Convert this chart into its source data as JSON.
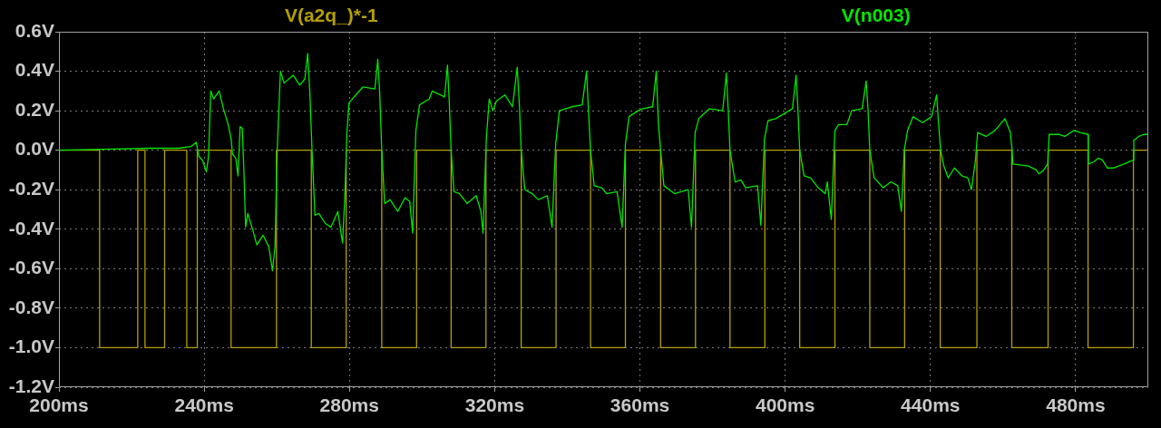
{
  "chart_data": {
    "type": "line",
    "legend": "top",
    "grid": true,
    "xlim": [
      200,
      500
    ],
    "ylim": [
      -1.2,
      0.6
    ],
    "xticks": [
      {
        "value": 200,
        "label": "200ms"
      },
      {
        "value": 240,
        "label": "240ms"
      },
      {
        "value": 280,
        "label": "280ms"
      },
      {
        "value": 320,
        "label": "320ms"
      },
      {
        "value": 360,
        "label": "360ms"
      },
      {
        "value": 400,
        "label": "400ms"
      },
      {
        "value": 440,
        "label": "440ms"
      },
      {
        "value": 480,
        "label": "480ms"
      }
    ],
    "yticks": [
      {
        "value": 0.6,
        "label": "0.6V"
      },
      {
        "value": 0.4,
        "label": "0.4V"
      },
      {
        "value": 0.2,
        "label": "0.2V"
      },
      {
        "value": 0,
        "label": "0.0V"
      },
      {
        "value": -0.2,
        "label": "-0.2V"
      },
      {
        "value": -0.4,
        "label": "-0.4V"
      },
      {
        "value": -0.6,
        "label": "-0.6V"
      },
      {
        "value": -0.8,
        "label": "-0.8V"
      },
      {
        "value": -1.0,
        "label": "-1.0V"
      },
      {
        "value": -1.2,
        "label": "-1.2V"
      }
    ],
    "series": [
      {
        "name": "V(a2q_)*-1",
        "color": "#b4a000",
        "x": [
          200,
          211.2,
          211.2,
          221.7,
          221.7,
          223.7,
          223.7,
          229.1,
          229.1,
          235.2,
          235.2,
          238.1,
          238.1,
          247.4,
          247.4,
          259.9,
          259.9,
          269.5,
          269.5,
          279.1,
          279.1,
          288.9,
          288.9,
          298.5,
          298.5,
          308.0,
          308.0,
          317.6,
          317.6,
          327.3,
          327.3,
          336.9,
          336.9,
          346.4,
          346.4,
          356.0,
          356.0,
          365.7,
          365.7,
          375.3,
          375.3,
          384.8,
          384.8,
          394.4,
          394.4,
          404.0,
          404.0,
          413.7,
          413.7,
          423.3,
          423.3,
          432.9,
          432.9,
          442.7,
          442.7,
          452.8,
          452.8,
          462.4,
          462.4,
          472.4,
          472.4,
          483.4,
          483.4,
          495.9,
          495.9,
          500
        ],
        "values": [
          0,
          0,
          -1,
          -1,
          0,
          0,
          -1,
          -1,
          0,
          0,
          -1,
          -1,
          0,
          0,
          -1,
          -1,
          0,
          0,
          -1,
          -1,
          0,
          0,
          -1,
          -1,
          0,
          0,
          -1,
          -1,
          0,
          0,
          -1,
          -1,
          0,
          0,
          -1,
          -1,
          0,
          0,
          -1,
          -1,
          0,
          0,
          -1,
          -1,
          0,
          0,
          -1,
          -1,
          0,
          0,
          -1,
          -1,
          0,
          0,
          -1,
          -1,
          0,
          0,
          -1,
          -1,
          0,
          0,
          -1,
          -1,
          0,
          0
        ]
      },
      {
        "name": "V(n003)",
        "color": "#00e600",
        "x": [
          200,
          212,
          225,
          233,
          236.5,
          237.8,
          238.5,
          239.5,
          240.6,
          241.2,
          241.8,
          242.6,
          244.1,
          245.3,
          246.6,
          247.4,
          247.8,
          248.7,
          249.3,
          249.9,
          250.5,
          251.0,
          251.4,
          252.0,
          253.3,
          254.5,
          256.2,
          257.8,
          258.8,
          259.5,
          260.1,
          261.0,
          262.0,
          264.5,
          266.3,
          267.7,
          268.5,
          269.1,
          269.7,
          270.5,
          271.6,
          273.3,
          274.9,
          276.8,
          278.1,
          278.7,
          279.3,
          279.9,
          280.8,
          283.7,
          287.0,
          287.8,
          288.3,
          288.9,
          289.7,
          291.2,
          293.3,
          295.3,
          296.6,
          297.4,
          298.3,
          299.3,
          302.0,
          302.8,
          306.2,
          307.0,
          307.5,
          308.0,
          308.8,
          310.3,
          312.4,
          314.9,
          316.2,
          316.8,
          317.7,
          318.5,
          319.5,
          320.5,
          322.8,
          324.9,
          326.2,
          326.8,
          327.3,
          328.3,
          330.3,
          332.0,
          334.5,
          335.8,
          336.8,
          337.8,
          341.2,
          344.1,
          345.3,
          345.8,
          346.4,
          347.4,
          349.5,
          350.8,
          353.7,
          355.1,
          356.0,
          357.0,
          359.5,
          360.8,
          363.5,
          364.5,
          365.1,
          365.7,
          366.6,
          369.5,
          373.3,
          374.2,
          375.2,
          376.2,
          379.1,
          382.8,
          383.8,
          384.3,
          384.8,
          386.2,
          387.8,
          389.1,
          392.4,
          393.3,
          394.3,
          395.3,
          397.4,
          402.0,
          403.0,
          403.5,
          404.0,
          405.2,
          407.0,
          409.1,
          411.0,
          411.6,
          412.7,
          413.7,
          414.7,
          417.0,
          418.3,
          421.2,
          422.3,
          422.8,
          423.3,
          424.5,
          427.0,
          429.1,
          431.0,
          432.0,
          432.8,
          433.7,
          435.2,
          437.8,
          440.3,
          441.7,
          442.3,
          442.8,
          443.7,
          444.9,
          446.6,
          448.7,
          450.3,
          451.3,
          452.4,
          453.0,
          455.3,
          457.8,
          460.5,
          462.0,
          462.5,
          462.7,
          467.0,
          469.1,
          469.9,
          471.2,
          472.3,
          472.7,
          475.3,
          477.0,
          479.5,
          481.2,
          483.4,
          483.5,
          484.9,
          486.2,
          487.4,
          488.7,
          490.3,
          493.3,
          495.8,
          496.0,
          497.4,
          498.7,
          500
        ],
        "values": [
          0,
          0.005,
          0.01,
          0.01,
          0.02,
          0.04,
          -0.03,
          -0.05,
          -0.11,
          -0.03,
          0.3,
          0.26,
          0.3,
          0.21,
          0.13,
          0.06,
          -0.02,
          -0.04,
          -0.13,
          0.12,
          0.11,
          -0.14,
          -0.39,
          -0.32,
          -0.4,
          -0.48,
          -0.43,
          -0.49,
          -0.61,
          -0.49,
          0,
          0.4,
          0.34,
          0.38,
          0.33,
          0.36,
          0.49,
          0.29,
          0,
          -0.33,
          -0.32,
          -0.37,
          -0.39,
          -0.31,
          -0.47,
          -0.25,
          0.09,
          0.24,
          0.26,
          0.32,
          0.31,
          0.46,
          0.3,
          0,
          -0.27,
          -0.25,
          -0.31,
          -0.24,
          -0.26,
          -0.42,
          0.1,
          0.23,
          0.26,
          0.3,
          0.27,
          0.43,
          0.24,
          0,
          -0.21,
          -0.22,
          -0.27,
          -0.23,
          -0.31,
          -0.42,
          0.06,
          0.26,
          0.2,
          0.25,
          0.28,
          0.22,
          0.42,
          0.23,
          0,
          -0.2,
          -0.22,
          -0.25,
          -0.23,
          -0.39,
          0.03,
          0.2,
          0.22,
          0.23,
          0.4,
          0.21,
          0,
          -0.18,
          -0.19,
          -0.22,
          -0.21,
          -0.39,
          0.03,
          0.17,
          0.2,
          0.21,
          0.22,
          0.4,
          0.13,
          0,
          -0.18,
          -0.22,
          -0.2,
          -0.39,
          0.09,
          0.16,
          0.21,
          0.2,
          0.39,
          0.21,
          0,
          -0.16,
          -0.15,
          -0.19,
          -0.18,
          -0.38,
          0.06,
          0.15,
          0.16,
          0.21,
          0.38,
          0.21,
          0,
          -0.13,
          -0.14,
          -0.19,
          -0.22,
          -0.16,
          -0.35,
          0.1,
          0.13,
          0.13,
          0.2,
          0.21,
          0.35,
          0.21,
          0,
          -0.14,
          -0.19,
          -0.16,
          -0.18,
          -0.31,
          0,
          0.1,
          0.17,
          0.14,
          0.17,
          0.28,
          0.12,
          0,
          -0.08,
          -0.14,
          -0.09,
          -0.13,
          -0.14,
          -0.2,
          -0.05,
          0.09,
          0.07,
          0.1,
          0.16,
          0.09,
          0,
          -0.07,
          -0.08,
          -0.1,
          -0.12,
          -0.1,
          -0.07,
          0.08,
          0.08,
          0.07,
          0.1,
          0.09,
          0.08,
          -0.07,
          -0.06,
          -0.04,
          -0.05,
          -0.09,
          -0.09,
          -0.07,
          -0.05,
          0.05,
          0.07,
          0.08,
          0.08
        ]
      }
    ]
  }
}
